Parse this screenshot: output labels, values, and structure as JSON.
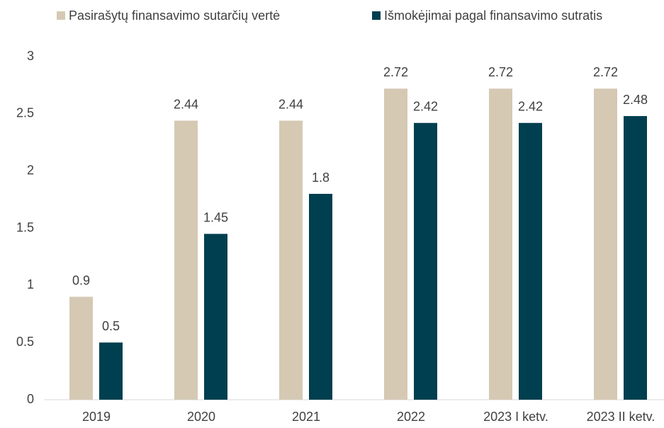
{
  "chart_data": {
    "type": "bar",
    "categories": [
      "2019",
      "2020",
      "2021",
      "2022",
      "2023 I ketv.",
      "2023 II ketv."
    ],
    "series": [
      {
        "name": "Pasirašytų finansavimo sutarčių vertė",
        "color": "#d5c9b4",
        "values": [
          0.9,
          2.44,
          2.44,
          2.72,
          2.72,
          2.72
        ]
      },
      {
        "name": "Išmokėjimai pagal finansavimo sutratis",
        "color": "#003f4f",
        "values": [
          0.5,
          1.45,
          1.8,
          2.42,
          2.42,
          2.48
        ]
      }
    ],
    "ylim": [
      0,
      3
    ],
    "yticks": [
      0,
      0.5,
      1,
      1.5,
      2,
      2.5,
      3
    ],
    "grid": false,
    "legend": "top"
  }
}
